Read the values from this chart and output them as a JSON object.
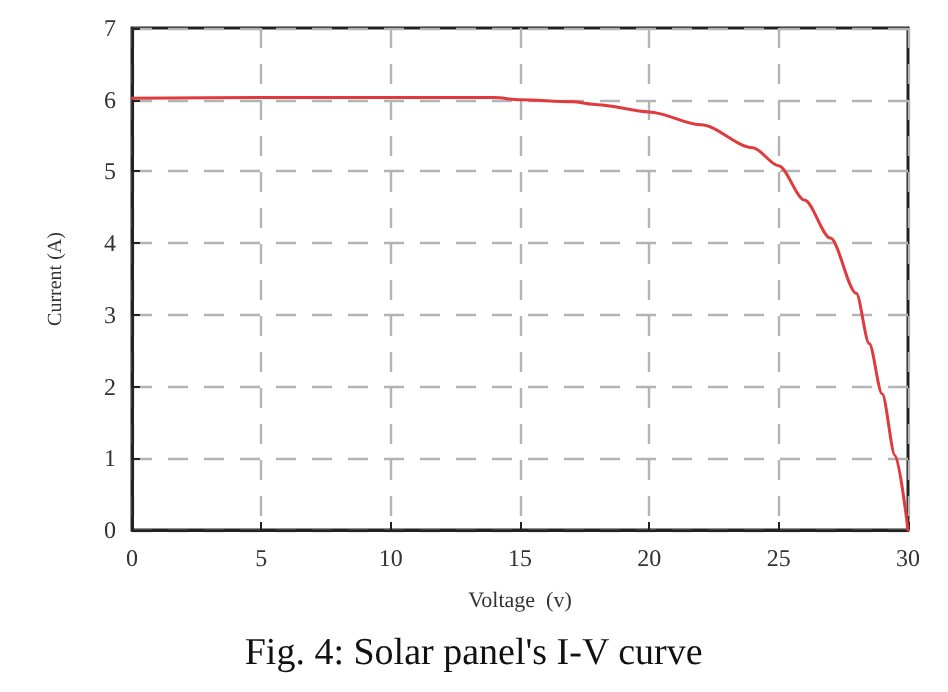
{
  "chart_data": {
    "type": "line",
    "xlabel": "Voltage  (v)",
    "ylabel": "Current (A)",
    "annotations": [
      "Fig. 4: Solar panel's I-V curve"
    ],
    "x": [
      0,
      5,
      10,
      14,
      15,
      17,
      18,
      20,
      22,
      24,
      25,
      26,
      27,
      28,
      28.5,
      29,
      29.5,
      30
    ],
    "series": [
      {
        "color": "#e03a3e",
        "values": [
          6.02,
          6.03,
          6.03,
          6.03,
          6.0,
          5.97,
          5.93,
          5.83,
          5.65,
          5.33,
          5.08,
          4.6,
          4.07,
          3.3,
          2.6,
          1.9,
          1.04,
          0
        ]
      }
    ],
    "xlim": [
      0,
      30
    ],
    "xticks": [
      0,
      5,
      10,
      15,
      20,
      25,
      30
    ],
    "ylim": [
      0,
      7
    ],
    "yticks": [
      0,
      1,
      2,
      3,
      4,
      5,
      6,
      7
    ],
    "grid": true,
    "marker": "none",
    "line_style": "solid"
  }
}
